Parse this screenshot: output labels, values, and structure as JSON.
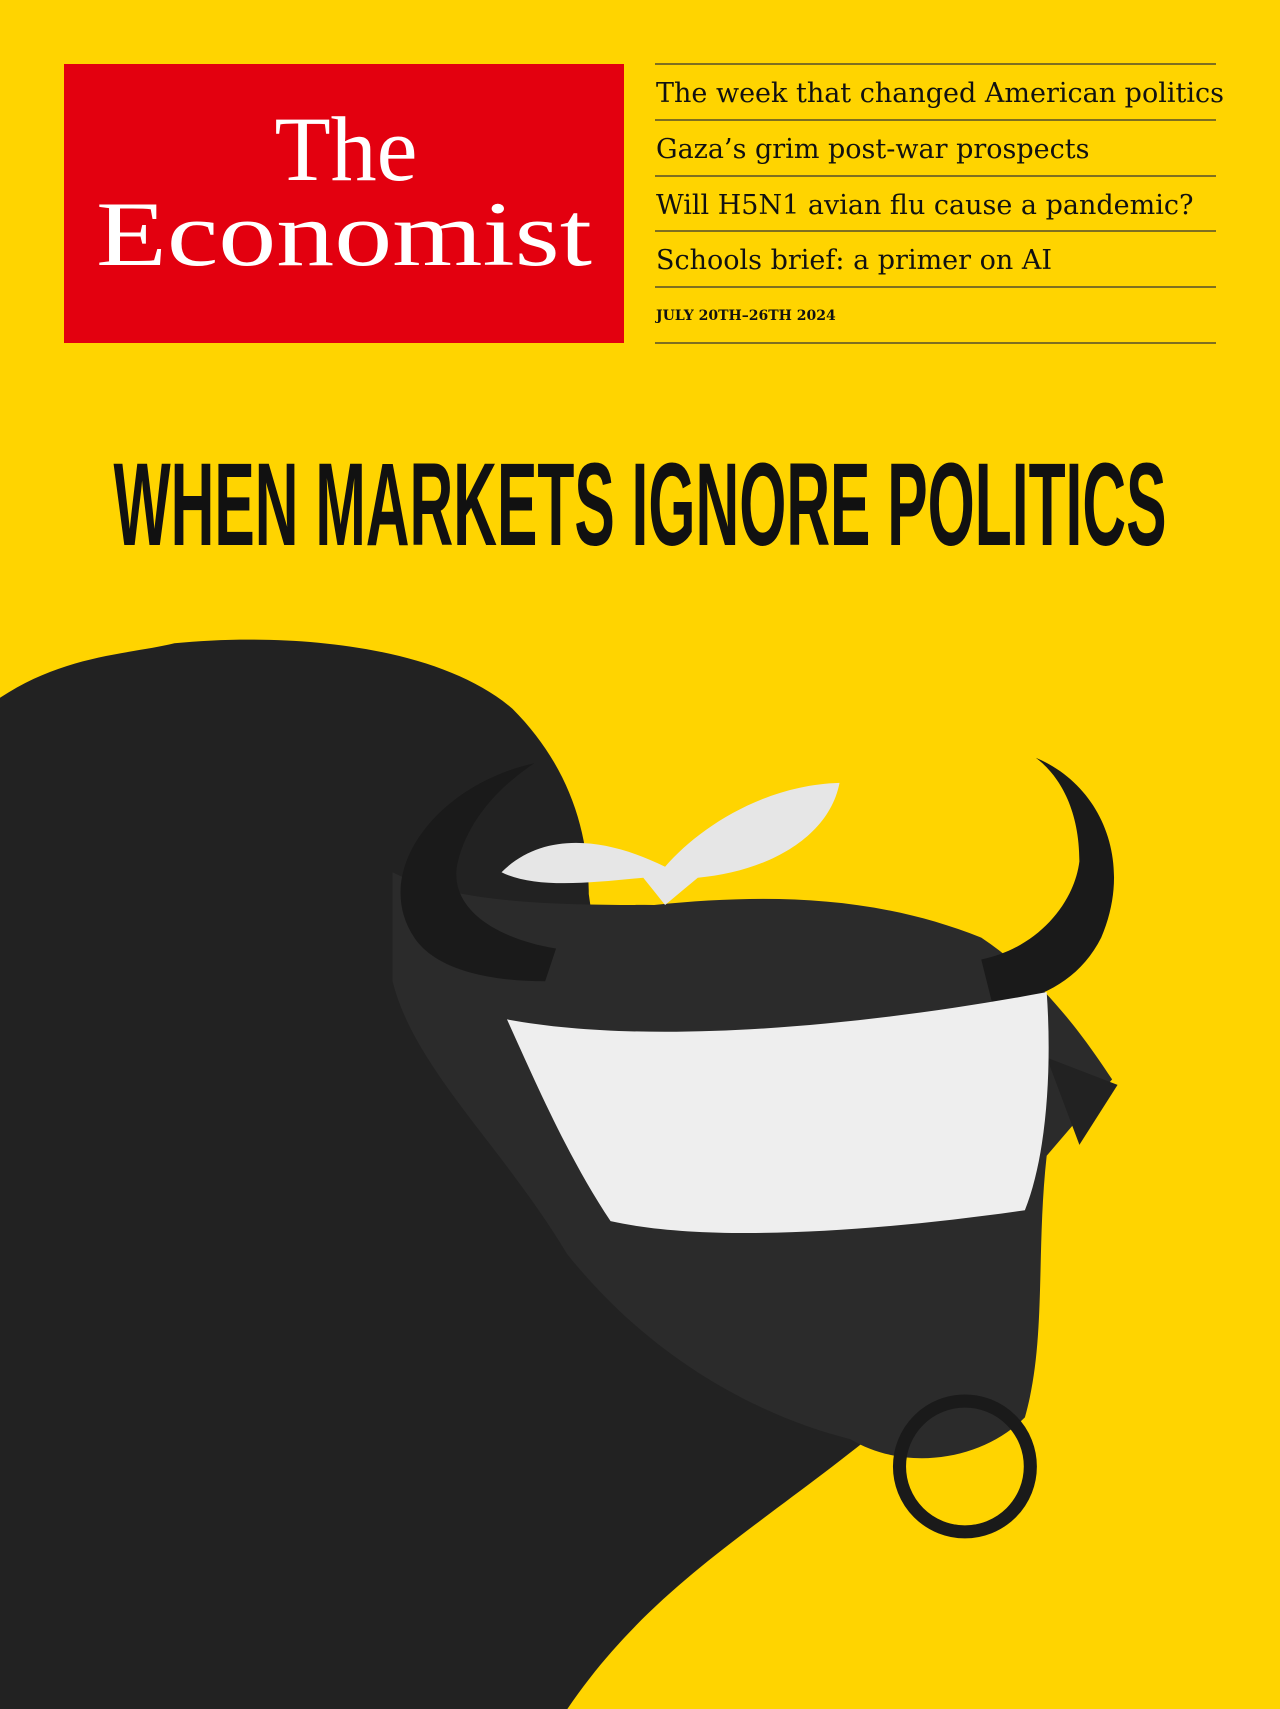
{
  "masthead": {
    "line1": "The",
    "line2": "Economist"
  },
  "headlines": [
    "The week that changed American politics",
    "Gaza’s grim post-war prospects",
    "Will H5N1 avian flu cause a pandemic?",
    "Schools brief: a primer on AI"
  ],
  "date": "JULY 20TH–26TH 2024",
  "cover_line": "WHEN MARKETS IGNORE POLITICS"
}
